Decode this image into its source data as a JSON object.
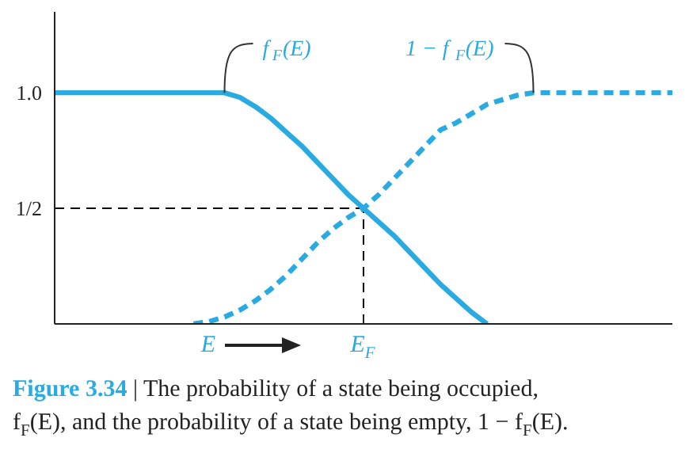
{
  "chart_data": {
    "type": "line",
    "categories": [
      null,
      null,
      null,
      null,
      null,
      null,
      null,
      null,
      null,
      null,
      "E",
      null,
      null,
      null,
      null,
      null,
      null,
      null,
      null,
      null,
      "E$_{F}$",
      null,
      null,
      null,
      null,
      null,
      null,
      null,
      null,
      null,
      null,
      null,
      null,
      null,
      null,
      null,
      null,
      null,
      null,
      null,
      null
    ],
    "ylim": [
      0,
      1.35
    ],
    "yticks": [
      {
        "value": 0.5,
        "label": "1/2"
      },
      {
        "value": 1.0,
        "label": "1.0"
      }
    ],
    "series": [
      {
        "name": "f$_{F}$(E)",
        "color": "#29abe2",
        "line_style": "solid",
        "values": [
          1,
          1,
          1,
          1,
          1,
          1,
          1,
          1,
          1,
          1,
          1,
          1,
          0.98,
          0.94,
          0.89,
          0.83,
          0.77,
          0.7,
          0.63,
          0.56,
          0.5,
          0.44,
          0.38,
          0.31,
          0.24,
          0.17,
          0.11,
          0.05,
          0,
          null,
          null,
          null,
          null,
          null,
          null,
          null,
          null,
          null,
          null,
          null,
          null
        ]
      },
      {
        "name": "1 − f$_{F}$(E)",
        "color": "#29abe2",
        "line_style": "dashed",
        "values": [
          null,
          null,
          null,
          null,
          null,
          null,
          null,
          null,
          null,
          0,
          0.01,
          0.03,
          0.06,
          0.1,
          0.15,
          0.21,
          0.28,
          0.35,
          0.41,
          0.46,
          0.5,
          0.56,
          0.63,
          0.7,
          0.77,
          0.84,
          0.87,
          0.91,
          0.95,
          0.97,
          0.99,
          1,
          1,
          1,
          1,
          1,
          1,
          1,
          1,
          1,
          1
        ]
      }
    ],
    "ref_lines": [
      {
        "axis": "y",
        "value": 0.5,
        "color": "#000000",
        "line_style": "dashed"
      },
      {
        "axis": "x",
        "value": "E$_{F}$",
        "color": "#000000",
        "line_style": "dashed"
      }
    ],
    "annotations": [
      "Figure 3.34",
      "| The probability of a state being occupied,",
      "f$_{F}$(E), and the probability of a state being empty, 1 − f$_{F}$(E)."
    ],
    "grid": false
  }
}
